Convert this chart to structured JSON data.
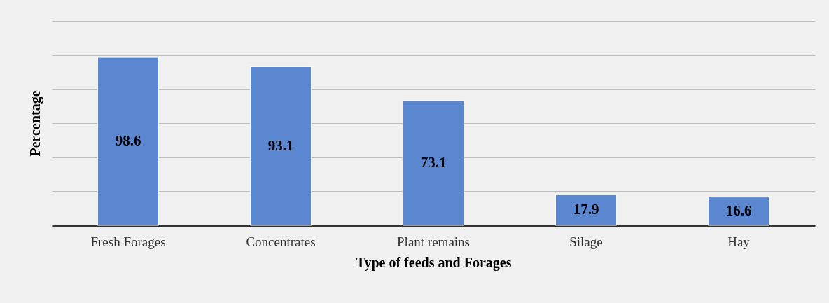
{
  "chart_data": {
    "type": "bar",
    "xlabel": "Type of feeds and Forages",
    "ylabel": "Percentage",
    "categories": [
      "Fresh Forages",
      "Concentrates",
      "Plant remains",
      "Silage",
      "Hay"
    ],
    "values": [
      98.6,
      93.1,
      73.1,
      17.9,
      16.6
    ],
    "color": "#5b86d0",
    "ylim": [
      0,
      120
    ],
    "yticks": [
      {
        "value": 0,
        "label": null
      },
      {
        "value": 20,
        "label": null
      },
      {
        "value": 40,
        "label": null
      },
      {
        "value": 60,
        "label": null
      },
      {
        "value": 80,
        "label": null
      },
      {
        "value": 100,
        "label": null
      },
      {
        "value": 120,
        "label": null
      }
    ],
    "grid": "y",
    "tick_labels": "x",
    "data_labels": true
  }
}
